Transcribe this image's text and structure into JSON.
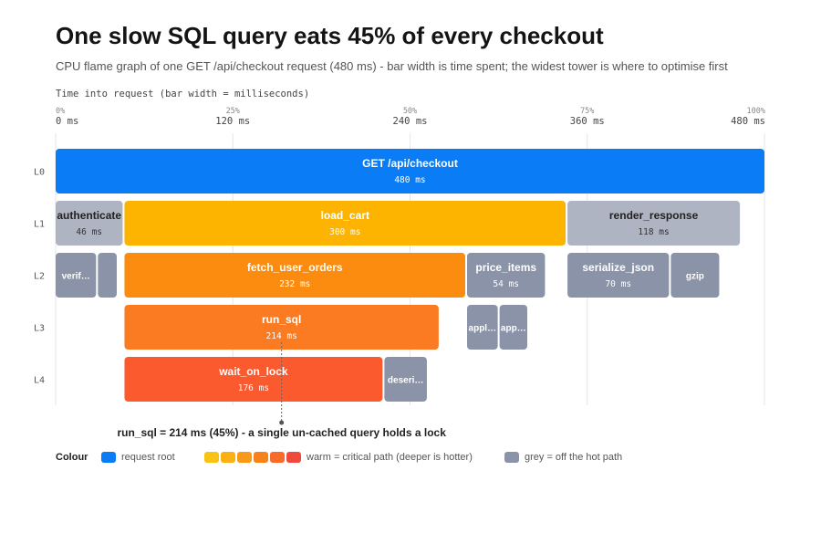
{
  "title": "One slow SQL query eats 45% of every checkout",
  "subtitle": "CPU flame graph of one GET /api/checkout request (480 ms) - bar width is time spent; the widest tower is where to optimise first",
  "chart_data": {
    "type": "flame",
    "axis_title": "Time into request (bar width = milliseconds)",
    "x_unit": "ms",
    "xlim": [
      0,
      480
    ],
    "ticks": [
      {
        "value": 0,
        "pct": "0%",
        "label": "0 ms"
      },
      {
        "value": 120,
        "pct": "25%",
        "label": "120 ms"
      },
      {
        "value": 240,
        "pct": "50%",
        "label": "240 ms"
      },
      {
        "value": 360,
        "pct": "75%",
        "label": "360 ms"
      },
      {
        "value": 480,
        "pct": "100%",
        "label": "480 ms"
      }
    ],
    "levels": [
      "L0",
      "L1",
      "L2",
      "L3",
      "L4"
    ],
    "frames": [
      {
        "name": "GET /api/checkout",
        "level": 0,
        "start": 0,
        "duration": 480,
        "duration_label": "480 ms",
        "kind": "root"
      },
      {
        "name": "authenticate",
        "level": 1,
        "start": 0,
        "duration": 46,
        "duration_label": "46 ms",
        "kind": "grey"
      },
      {
        "name": "load_cart",
        "level": 1,
        "start": 46,
        "duration": 300,
        "duration_label": "300 ms",
        "kind": "warm",
        "heat": 0
      },
      {
        "name": "render_response",
        "level": 1,
        "start": 346,
        "duration": 118,
        "duration_label": "118 ms",
        "kind": "grey"
      },
      {
        "name": "verif…",
        "level": 2,
        "start": 0,
        "duration": 28,
        "duration_label": "",
        "kind": "grey"
      },
      {
        "name": "",
        "level": 2,
        "start": 28,
        "duration": 14,
        "duration_label": "",
        "kind": "grey"
      },
      {
        "name": "fetch_user_orders",
        "level": 2,
        "start": 46,
        "duration": 232,
        "duration_label": "232 ms",
        "kind": "warm",
        "heat": 1
      },
      {
        "name": "price_items",
        "level": 2,
        "start": 278,
        "duration": 54,
        "duration_label": "54 ms",
        "kind": "grey"
      },
      {
        "name": "serialize_json",
        "level": 2,
        "start": 346,
        "duration": 70,
        "duration_label": "70 ms",
        "kind": "grey"
      },
      {
        "name": "gzip",
        "level": 2,
        "start": 416,
        "duration": 34,
        "duration_label": "",
        "kind": "grey"
      },
      {
        "name": "run_sql",
        "level": 3,
        "start": 46,
        "duration": 214,
        "duration_label": "214 ms",
        "kind": "warm",
        "heat": 2
      },
      {
        "name": "appl…",
        "level": 3,
        "start": 278,
        "duration": 22,
        "duration_label": "",
        "kind": "grey"
      },
      {
        "name": "app…",
        "level": 3,
        "start": 300,
        "duration": 20,
        "duration_label": "",
        "kind": "grey"
      },
      {
        "name": "wait_on_lock",
        "level": 4,
        "start": 46,
        "duration": 176,
        "duration_label": "176 ms",
        "kind": "warm",
        "heat": 4
      },
      {
        "name": "deseri…",
        "level": 4,
        "start": 222,
        "duration": 30,
        "duration_label": "",
        "kind": "grey"
      }
    ],
    "annotation": {
      "text": "run_sql = 214 ms (45%) - a single un-cached query holds a lock",
      "at_ms": 153,
      "level": 3
    },
    "legend": {
      "title": "Colour",
      "items": [
        {
          "label": "request root",
          "colors": [
            "#0a7cf5"
          ]
        },
        {
          "label": "warm = critical path (deeper is hotter)",
          "colors": [
            "#f7c315",
            "#fbb013",
            "#f99a17",
            "#f7821b",
            "#f86b2a",
            "#f04a3c"
          ]
        },
        {
          "label": "grey = off the hot path",
          "colors": [
            "#8a93a8"
          ]
        }
      ]
    },
    "colors": {
      "root": "#0a7cf5",
      "grey_l1": "#aeb4c2",
      "grey_deep": "#8a93a8",
      "warm": [
        "#fcb400",
        "#fb8c0f",
        "#fb7b22",
        "#ff6a2b",
        "#fb5a2e"
      ],
      "grid": "#e6e6e6"
    }
  }
}
